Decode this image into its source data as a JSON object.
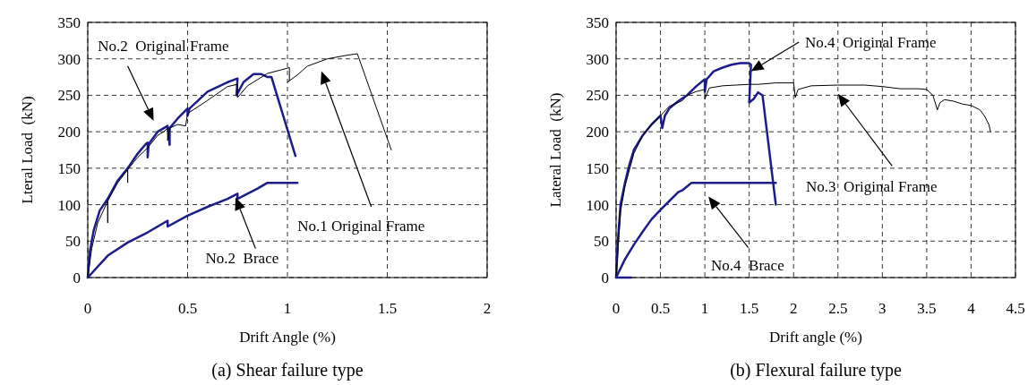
{
  "chart_data": [
    {
      "type": "line",
      "title": "(a) Shear failure type",
      "xlabel": "Drift Angle (%)",
      "ylabel": "Lteral Load  (kN)",
      "xlim": [
        0,
        2
      ],
      "xticks": [
        0,
        0.5,
        1,
        1.5,
        2
      ],
      "ylim": [
        0,
        350
      ],
      "yticks": [
        0,
        50,
        100,
        150,
        200,
        250,
        300,
        350
      ],
      "grid": true,
      "marker": "none",
      "line_style": "solid",
      "annotations": [
        "No.2  Original Frame",
        "No.1 Original Frame",
        "No.2  Brace"
      ],
      "series": [
        {
          "color": "#1c1c8a",
          "x": [
            0,
            0.01,
            0.03,
            0.06,
            0.1,
            0.15,
            0.2,
            0.25,
            0.29,
            0.3,
            0.3,
            0.305,
            0.35,
            0.4,
            0.41,
            0.41,
            0.45,
            0.5,
            0.5,
            0.51,
            0.6,
            0.7,
            0.75,
            0.745,
            0.78,
            0.83,
            0.87,
            0.9,
            0.92,
            1.04
          ],
          "values": [
            0,
            35,
            65,
            92,
            108,
            133,
            150,
            170,
            183,
            185,
            165,
            183,
            200,
            208,
            182,
            205,
            218,
            232,
            222,
            232,
            255,
            268,
            273,
            250,
            268,
            279,
            279,
            275,
            275,
            167
          ]
        },
        {
          "color": "#000000",
          "x": [
            0,
            0.02,
            0.05,
            0.1,
            0.1,
            0.1,
            0.15,
            0.2,
            0.2,
            0.2,
            0.25,
            0.3,
            0.35,
            0.38,
            0.4,
            0.4,
            0.41,
            0.45,
            0.49,
            0.5,
            0.6,
            0.7,
            0.75,
            0.75,
            0.8,
            0.9,
            0.97,
            1.01,
            1.01,
            1.0,
            1.05,
            1.1,
            1.2,
            1.3,
            1.35,
            1.52
          ],
          "values": [
            0,
            40,
            75,
            105,
            75,
            105,
            130,
            148,
            130,
            148,
            165,
            178,
            195,
            200,
            205,
            188,
            205,
            210,
            208,
            225,
            243,
            262,
            265,
            247,
            263,
            280,
            285,
            288,
            270,
            268,
            278,
            290,
            300,
            305,
            307,
            175
          ]
        },
        {
          "color": "#1c1c8a",
          "x": [
            0,
            0.1,
            0.2,
            0.3,
            0.4,
            0.4,
            0.5,
            0.6,
            0.7,
            0.75,
            0.75,
            0.8,
            0.85,
            0.9,
            1.05
          ],
          "values": [
            0,
            30,
            48,
            62,
            78,
            70,
            85,
            97,
            108,
            115,
            108,
            115,
            122,
            130,
            130
          ]
        }
      ]
    },
    {
      "type": "line",
      "title": "(b) Flexural failure type",
      "xlabel": "Drift angle (%)",
      "ylabel": "Lateral Load  (kN)",
      "xlim": [
        0,
        4.5
      ],
      "xticks": [
        0,
        0.5,
        1,
        1.5,
        2,
        2.5,
        3,
        3.5,
        4,
        4.5
      ],
      "ylim": [
        0,
        350
      ],
      "yticks": [
        0,
        50,
        100,
        150,
        200,
        250,
        300,
        350
      ],
      "grid": true,
      "marker": "none",
      "line_style": "solid",
      "annotations": [
        "No.4  Original Frame",
        "No.3  Original Frame",
        "No.4  Brace"
      ],
      "series": [
        {
          "color": "#1c1c8a",
          "x": [
            0,
            0.02,
            0.05,
            0.1,
            0.15,
            0.2,
            0.3,
            0.4,
            0.5,
            0.52,
            0.55,
            0.6,
            0.7,
            0.8,
            0.9,
            1.0,
            1.0,
            1.02,
            1.1,
            1.2,
            1.3,
            1.4,
            1.5,
            1.52,
            1.5,
            1.55,
            1.6,
            1.65,
            1.7,
            1.8
          ],
          "values": [
            0,
            50,
            100,
            130,
            155,
            175,
            195,
            210,
            222,
            205,
            222,
            232,
            242,
            250,
            262,
            272,
            255,
            272,
            283,
            288,
            292,
            294,
            294,
            292,
            240,
            245,
            254,
            250,
            200,
            100
          ]
        },
        {
          "color": "#000000",
          "x": [
            0,
            0.05,
            0.1,
            0.2,
            0.3,
            0.4,
            0.5,
            0.6,
            0.7,
            0.75,
            0.8,
            0.9,
            1.0,
            1.0,
            1.05,
            1.2,
            1.5,
            1.6,
            1.8,
            2.0,
            2.02,
            2.05,
            2.2,
            2.5,
            2.8,
            3.0,
            3.2,
            3.4,
            3.5,
            3.57,
            3.62,
            3.65,
            3.7,
            3.8,
            3.9,
            4.0,
            4.1,
            4.15,
            4.2,
            4.22
          ],
          "values": [
            0,
            90,
            125,
            170,
            195,
            210,
            222,
            235,
            240,
            243,
            250,
            255,
            258,
            245,
            260,
            263,
            265,
            265,
            267,
            267,
            247,
            258,
            263,
            264,
            264,
            262,
            259,
            259,
            258,
            250,
            230,
            240,
            244,
            242,
            238,
            236,
            230,
            222,
            210,
            200
          ]
        },
        {
          "color": "#1c1c8a",
          "x": [
            0.17,
            0,
            0.1,
            0.2,
            0.3,
            0.4,
            0.5,
            0.6,
            0.7,
            0.75,
            0.8,
            0.85,
            1.8
          ],
          "values": [
            0,
            0,
            25,
            45,
            63,
            80,
            93,
            105,
            117,
            120,
            125,
            130,
            130
          ]
        }
      ]
    }
  ]
}
